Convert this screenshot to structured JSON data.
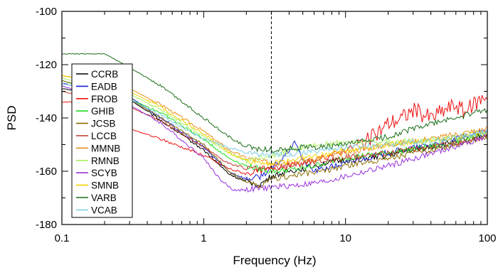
{
  "chart_data": {
    "type": "line",
    "title": "",
    "xlabel": "Frequency (Hz)",
    "ylabel": "PSD",
    "xscale": "log",
    "xlim": [
      0.1,
      100
    ],
    "ylim": [
      -180,
      -100
    ],
    "x_ticks": [
      0.1,
      1,
      10,
      100
    ],
    "x_tick_labels": [
      "0.1",
      "1",
      "10",
      "100"
    ],
    "y_ticks": [
      -100,
      -120,
      -140,
      -160,
      -180
    ],
    "y_tick_labels": [
      "-100",
      "-120",
      "-140",
      "-160",
      "-180"
    ],
    "grid": false,
    "legend_position": "left",
    "reference_line": {
      "x": 3,
      "style": "dashed",
      "color": "#000000"
    },
    "series": [
      {
        "name": "CCRB",
        "color": "#000000",
        "x": [
          0.1,
          0.3,
          0.5,
          1,
          1.5,
          2,
          2.5,
          3,
          4,
          5,
          7,
          10,
          15,
          20,
          30,
          50,
          100
        ],
        "y": [
          -129,
          -133,
          -141,
          -152,
          -161,
          -164,
          -165,
          -162,
          -160,
          -159,
          -157,
          -156,
          -155,
          -154,
          -152,
          -150,
          -146
        ]
      },
      {
        "name": "EADB",
        "color": "#1f1fd6",
        "x": [
          0.1,
          0.3,
          0.5,
          1,
          1.5,
          2,
          2.5,
          3,
          3.5,
          4,
          4.5,
          5,
          6,
          7,
          10,
          20,
          50,
          100
        ],
        "y": [
          -127,
          -132,
          -140,
          -151,
          -160,
          -163,
          -162,
          -159,
          -156,
          -152,
          -149,
          -156,
          -160,
          -159,
          -157,
          -153,
          -149,
          -145
        ]
      },
      {
        "name": "FROB",
        "color": "#ee1111",
        "x": [
          0.1,
          0.2,
          0.3,
          0.5,
          1,
          1.5,
          2,
          3,
          5,
          7,
          10,
          15,
          20,
          25,
          30,
          40,
          50,
          60,
          70,
          80,
          90,
          100
        ],
        "y": [
          -134,
          -134,
          -144,
          -148,
          -154,
          -159,
          -161,
          -159,
          -157,
          -155,
          -152,
          -148,
          -142,
          -140,
          -137,
          -140,
          -137,
          -135,
          -138,
          -135,
          -133,
          -131
        ]
      },
      {
        "name": "GHIB",
        "color": "#22dd22",
        "x": [
          0.1,
          0.3,
          0.5,
          1,
          1.5,
          2,
          3,
          5,
          7,
          10,
          20,
          50,
          100
        ],
        "y": [
          -126,
          -133,
          -138,
          -148,
          -155,
          -158,
          -160,
          -159,
          -157,
          -155,
          -153,
          -150,
          -146
        ]
      },
      {
        "name": "JCSB",
        "color": "#8a6b00",
        "x": [
          0.1,
          0.3,
          0.5,
          1,
          1.5,
          2,
          2.5,
          3,
          5,
          7,
          10,
          20,
          50,
          100
        ],
        "y": [
          -126,
          -133,
          -140,
          -150,
          -160,
          -164,
          -166,
          -163,
          -161,
          -160,
          -158,
          -155,
          -151,
          -147
        ]
      },
      {
        "name": "LCCB",
        "color": "#c0392b",
        "x": [
          0.1,
          0.3,
          0.5,
          1,
          1.5,
          2,
          3,
          5,
          7,
          10,
          20,
          50,
          100
        ],
        "y": [
          -130,
          -136,
          -141,
          -151,
          -157,
          -159,
          -159,
          -157,
          -156,
          -155,
          -153,
          -150,
          -147
        ]
      },
      {
        "name": "MMNB",
        "color": "#e8901a",
        "x": [
          0.1,
          0.3,
          0.5,
          1,
          1.5,
          2,
          3,
          5,
          7,
          10,
          20,
          50,
          100
        ],
        "y": [
          -124,
          -129,
          -135,
          -145,
          -152,
          -155,
          -157,
          -156,
          -155,
          -153,
          -150,
          -147,
          -144
        ]
      },
      {
        "name": "RMNB",
        "color": "#a8f060",
        "x": [
          0.1,
          0.3,
          0.5,
          1,
          1.5,
          2,
          3,
          5,
          7,
          10,
          20,
          50,
          100
        ],
        "y": [
          -125,
          -131,
          -137,
          -147,
          -153,
          -156,
          -154,
          -151,
          -150,
          -149,
          -149,
          -148,
          -146
        ]
      },
      {
        "name": "SCYB",
        "color": "#9933dd",
        "x": [
          0.1,
          0.3,
          0.5,
          1,
          1.3,
          1.6,
          2,
          3,
          5,
          7,
          10,
          20,
          50,
          100
        ],
        "y": [
          -128,
          -135,
          -142,
          -155,
          -163,
          -167,
          -167,
          -166,
          -165,
          -164,
          -162,
          -158,
          -152,
          -147
        ]
      },
      {
        "name": "SMNB",
        "color": "#f2d200",
        "x": [
          0.1,
          0.3,
          0.5,
          1,
          1.5,
          2,
          3,
          5,
          7,
          10,
          20,
          50,
          100
        ],
        "y": [
          -124,
          -130,
          -136,
          -146,
          -153,
          -156,
          -157,
          -155,
          -154,
          -152,
          -150,
          -148,
          -145
        ]
      },
      {
        "name": "VARB",
        "color": "#1a6e1a",
        "x": [
          0.1,
          0.2,
          0.3,
          0.5,
          1,
          1.5,
          2,
          3,
          5,
          7,
          10,
          20,
          30,
          50,
          100
        ],
        "y": [
          -116,
          -116,
          -121,
          -128,
          -140,
          -147,
          -151,
          -152,
          -151,
          -151,
          -150,
          -147,
          -144,
          -141,
          -137
        ]
      },
      {
        "name": "VCAB",
        "color": "#7ecfe3",
        "x": [
          0.1,
          0.3,
          0.5,
          1,
          1.5,
          2,
          3,
          5,
          7,
          10,
          20,
          50,
          100
        ],
        "y": [
          -127,
          -133,
          -139,
          -148,
          -151,
          -153,
          -154,
          -153,
          -152,
          -151,
          -150,
          -148,
          -145
        ]
      }
    ]
  }
}
